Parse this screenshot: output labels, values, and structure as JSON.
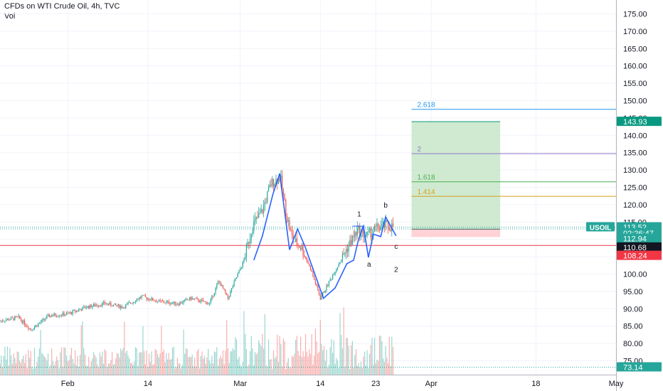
{
  "header": {
    "title": "CFDs on WTI Crude Oil, 4h, TVC",
    "volume_label": "Vol"
  },
  "colors": {
    "up": "#26a69a",
    "down": "#ef5350",
    "wave": "#2962ff",
    "grid": "#f0f3fa",
    "axis_text": "#131722",
    "profit_zone": "#c8e6c9",
    "loss_zone": "#ffcdd2",
    "fib_2618": "#2196f3",
    "fib_2": "#9575cd",
    "fib_1618": "#4caf50",
    "fib_1414": "#d4a017",
    "support": "#f23645"
  },
  "chart_data": {
    "type": "candlestick",
    "title": "CFDs on WTI Crude Oil, 4h, TVC",
    "symbol": "USOIL",
    "ylim": [
      71,
      179
    ],
    "y_ticks": [
      75,
      80,
      85,
      90,
      95,
      100,
      105,
      110,
      115,
      120,
      125,
      130,
      135,
      140,
      145,
      150,
      155,
      160,
      165,
      170,
      175
    ],
    "x_ticks": [
      {
        "label": "Feb",
        "day": 31
      },
      {
        "label": "14",
        "day": 44
      },
      {
        "label": "Mar",
        "day": 59
      },
      {
        "label": "14",
        "day": 72
      },
      {
        "label": "23",
        "day": 81
      },
      {
        "label": "Apr",
        "day": 90
      },
      {
        "label": "18",
        "day": 107
      },
      {
        "label": "May",
        "day": 120
      }
    ],
    "x_range_days": [
      20,
      120
    ],
    "trend_path": [
      [
        20,
        86.5
      ],
      [
        23,
        87.5
      ],
      [
        25,
        84
      ],
      [
        28,
        88
      ],
      [
        31,
        88.5
      ],
      [
        34,
        90.5
      ],
      [
        37,
        91.5
      ],
      [
        40,
        90.5
      ],
      [
        43,
        93.5
      ],
      [
        46,
        92
      ],
      [
        49,
        91.5
      ],
      [
        51,
        93
      ],
      [
        54,
        91.5
      ],
      [
        55.5,
        98
      ],
      [
        57,
        93
      ],
      [
        58,
        97.5
      ],
      [
        59.5,
        103.5
      ],
      [
        61,
        114
      ],
      [
        62.5,
        118
      ],
      [
        64,
        126
      ],
      [
        65.5,
        128
      ],
      [
        66.5,
        117
      ],
      [
        67.5,
        110
      ],
      [
        69,
        107.5
      ],
      [
        70.5,
        101
      ],
      [
        72,
        93
      ],
      [
        73.5,
        98
      ],
      [
        75,
        103
      ],
      [
        76.5,
        108
      ],
      [
        78,
        112.5
      ],
      [
        79.5,
        111
      ],
      [
        81,
        113
      ],
      [
        82.5,
        114
      ],
      [
        84,
        113.5
      ]
    ],
    "wave_path": [
      [
        61.2,
        104
      ],
      [
        62.6,
        111
      ],
      [
        64.3,
        123
      ],
      [
        65.4,
        129
      ],
      [
        67.0,
        107
      ],
      [
        68.3,
        113
      ],
      [
        69.5,
        108
      ],
      [
        72.5,
        93
      ],
      [
        74.4,
        96
      ],
      [
        76.3,
        103
      ],
      [
        77.4,
        104
      ],
      [
        78.2,
        110
      ],
      [
        79.0,
        113.8
      ],
      [
        79.8,
        104.8
      ],
      [
        80.6,
        111.5
      ],
      [
        81.8,
        110.8
      ],
      [
        82.6,
        116.5
      ],
      [
        84.3,
        111
      ]
    ],
    "annotations": [
      {
        "text": "1",
        "day": 78.3,
        "price": 116.6
      },
      {
        "text": "a",
        "day": 79.9,
        "price": 102.2
      },
      {
        "text": "b",
        "day": 82.6,
        "price": 119.2
      },
      {
        "text": "c",
        "day": 84.3,
        "price": 107.3
      },
      {
        "text": "2",
        "day": 84.3,
        "price": 100.6
      }
    ],
    "wave1_top": {
      "from_day": 77.2,
      "to_day": 79.2,
      "price": 113.8
    },
    "position": {
      "from_day": 86.8,
      "to_day": 101.2,
      "target": 143.93,
      "entry": 112.94,
      "stop": 110.68
    },
    "fib_levels": [
      {
        "label": "2.618",
        "price": 147.5,
        "color_key": "fib_2618"
      },
      {
        "label": "2",
        "price": 134.7,
        "color_key": "fib_2"
      },
      {
        "label": "1.618",
        "price": 126.6,
        "color_key": "fib_1618"
      },
      {
        "label": "1.414",
        "price": 122.4,
        "color_key": "fib_1414"
      }
    ],
    "support_line": 108.24,
    "dotted_levels": [
      113.52,
      113.0,
      73.14
    ],
    "price_badges": [
      {
        "value": "113.52",
        "price": 113.52,
        "bg": "#26a69a",
        "fg": "#ffffff"
      },
      {
        "value": "02:26:47",
        "price": 111.8,
        "bg": "#26a69a",
        "fg": "#ffffff"
      },
      {
        "value": "112.94",
        "price": 110.2,
        "bg": "#26a69a",
        "fg": "#ffffff"
      },
      {
        "value": "110.68",
        "price": 107.7,
        "bg": "#131722",
        "fg": "#ffffff"
      },
      {
        "value": "108.24",
        "price": 105.3,
        "bg": "#f23645",
        "fg": "#ffffff"
      },
      {
        "value": "143.93",
        "price": 143.93,
        "bg": "#089981",
        "fg": "#ffffff"
      },
      {
        "value": "73.14",
        "price": 73.14,
        "bg": "#26a69a",
        "fg": "#ffffff"
      }
    ],
    "symbol_badge_price": 113.52,
    "grid": true
  }
}
